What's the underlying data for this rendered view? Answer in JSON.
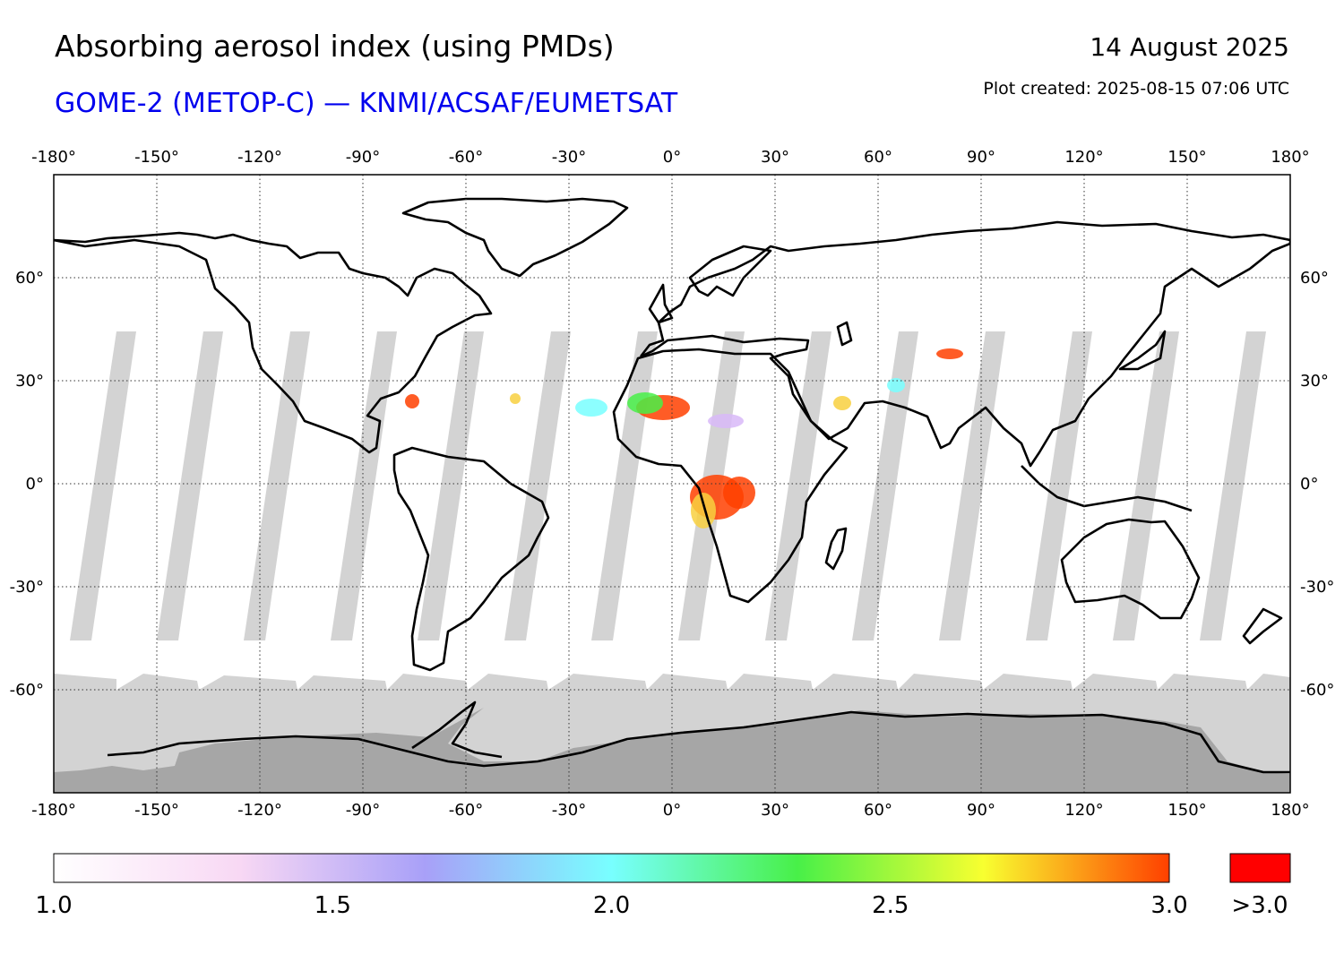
{
  "header": {
    "title": "Absorbing aerosol index (using PMDs)",
    "subtitle": "GOME-2 (METOP-C) — KNMI/ACSAF/EUMETSAT",
    "date": "14 August 2025",
    "plot_created": "Plot created: 2025-08-15 07:06 UTC"
  },
  "map": {
    "projection": "equirectangular",
    "lon_range": [
      -180,
      180
    ],
    "lat_range": [
      -90,
      90
    ],
    "lon_ticks": [
      -180,
      -150,
      -120,
      -90,
      -60,
      -30,
      0,
      30,
      60,
      90,
      120,
      150,
      180
    ],
    "lon_tick_labels": [
      "-180°",
      "-150°",
      "-120°",
      "-90°",
      "-60°",
      "-30°",
      "0°",
      "30°",
      "60°",
      "90°",
      "120°",
      "150°",
      "180°"
    ],
    "lat_ticks": [
      60,
      30,
      0,
      -30,
      -60
    ],
    "lat_tick_labels": [
      "60°",
      "30°",
      "0°",
      "-30°",
      "-60°"
    ],
    "colors": {
      "coastline": "#000000",
      "no_data_gap": "#d3d3d3",
      "polar_night": "#a6a6a6",
      "overflow": "#ff0000"
    }
  },
  "colorbar": {
    "tick_values": [
      1.0,
      1.5,
      2.0,
      2.5,
      3.0
    ],
    "tick_labels": [
      "1.0",
      "1.5",
      "2.0",
      "2.5",
      "3.0"
    ],
    "overflow_label": ">3.0",
    "stops": [
      "#ffffff",
      "#f8d8f4",
      "#a8a0f8",
      "#78ffff",
      "#48f048",
      "#f8ff30",
      "#ff4000"
    ]
  }
}
